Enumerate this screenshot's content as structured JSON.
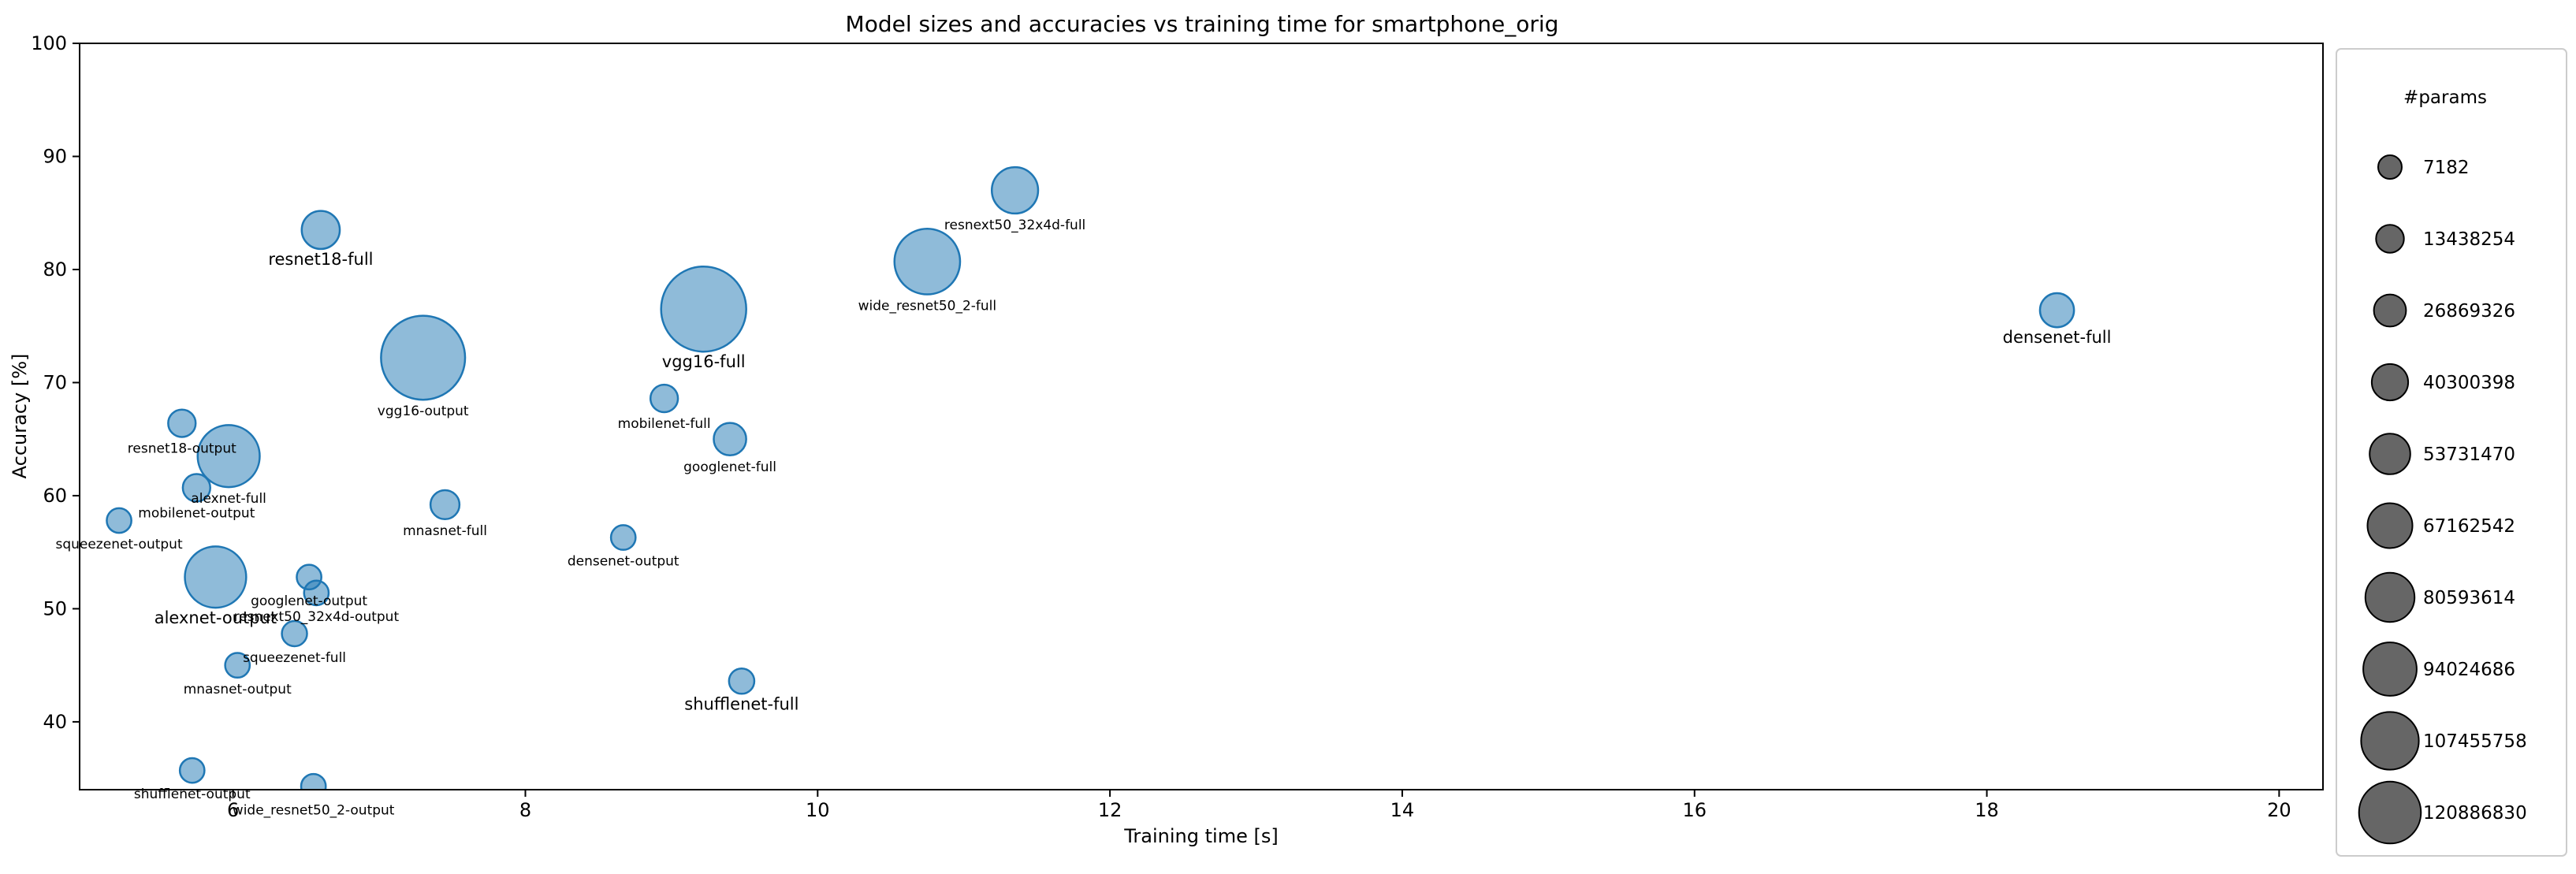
{
  "chart_data": {
    "type": "scatter",
    "title": "Model sizes and accuracies vs training time for smartphone_orig",
    "xlabel": "Training time [s]",
    "ylabel": "Accuracy [%]",
    "xlim": [
      4.95,
      20.3
    ],
    "ylim": [
      34,
      100
    ],
    "xticks": [
      6,
      8,
      10,
      12,
      14,
      16,
      18,
      20
    ],
    "yticks": [
      40,
      50,
      60,
      70,
      80,
      90,
      100
    ],
    "grid": false,
    "legend": {
      "title": "#params",
      "placement": "outside-right",
      "entries": [
        "7182",
        "13438254",
        "26869326",
        "40300398",
        "53731470",
        "67162542",
        "80593614",
        "94024686",
        "107455758",
        "120886830"
      ]
    },
    "points": [
      {
        "label": "resnet18-full",
        "x": 6.6,
        "y": 83.5,
        "params": 11200000,
        "bold": true
      },
      {
        "label": "resnext50_32x4d-full",
        "x": 11.35,
        "y": 87.0,
        "params": 23000000,
        "bold": false
      },
      {
        "label": "wide_resnet50_2-full",
        "x": 10.75,
        "y": 80.7,
        "params": 66800000,
        "bold": false
      },
      {
        "label": "vgg16-full",
        "x": 9.22,
        "y": 76.5,
        "params": 134300000,
        "bold": true
      },
      {
        "label": "densenet-full",
        "x": 18.48,
        "y": 76.4,
        "params": 7000000,
        "bold": true
      },
      {
        "label": "vgg16-output",
        "x": 7.3,
        "y": 72.2,
        "params": 130000000,
        "bold": false
      },
      {
        "label": "mobilenet-full",
        "x": 8.95,
        "y": 68.6,
        "params": 2230000,
        "bold": false
      },
      {
        "label": "resnet18-output",
        "x": 5.65,
        "y": 66.4,
        "params": 2230000,
        "bold": false
      },
      {
        "label": "googlenet-full",
        "x": 9.4,
        "y": 65.0,
        "params": 5600000,
        "bold": false
      },
      {
        "label": "alexnet-full",
        "x": 5.97,
        "y": 63.5,
        "params": 57000000,
        "bold": false
      },
      {
        "label": "mobilenet-output",
        "x": 5.75,
        "y": 60.7,
        "params": 2230000,
        "bold": false
      },
      {
        "label": "mnasnet-full",
        "x": 7.45,
        "y": 59.2,
        "params": 3100000,
        "bold": false
      },
      {
        "label": "squeezenet-output",
        "x": 5.22,
        "y": 57.8,
        "params": 1000000,
        "bold": false
      },
      {
        "label": "densenet-output",
        "x": 8.67,
        "y": 56.3,
        "params": 1000000,
        "bold": false
      },
      {
        "label": "alexnet-output",
        "x": 5.88,
        "y": 52.8,
        "params": 55000000,
        "bold": true
      },
      {
        "label": "googlenet-output",
        "x": 6.52,
        "y": 52.8,
        "params": 1000000,
        "bold": false
      },
      {
        "label": "resnext50_32x4d-output",
        "x": 6.57,
        "y": 51.4,
        "params": 1000000,
        "bold": false
      },
      {
        "label": "squeezenet-full",
        "x": 6.42,
        "y": 47.8,
        "params": 1200000,
        "bold": false
      },
      {
        "label": "mnasnet-output",
        "x": 6.03,
        "y": 45.0,
        "params": 1000000,
        "bold": false
      },
      {
        "label": "shufflenet-full",
        "x": 9.48,
        "y": 43.6,
        "params": 1250000,
        "bold": true
      },
      {
        "label": "shufflenet-output",
        "x": 5.72,
        "y": 35.7,
        "params": 1000000,
        "bold": false
      },
      {
        "label": "wide_resnet50_2-output",
        "x": 6.55,
        "y": 34.3,
        "params": 1000000,
        "bold": false
      }
    ]
  },
  "colors": {
    "marker_fill": "#1f77b4",
    "marker_stroke": "#1f77b4",
    "legend_marker": "#555555"
  }
}
